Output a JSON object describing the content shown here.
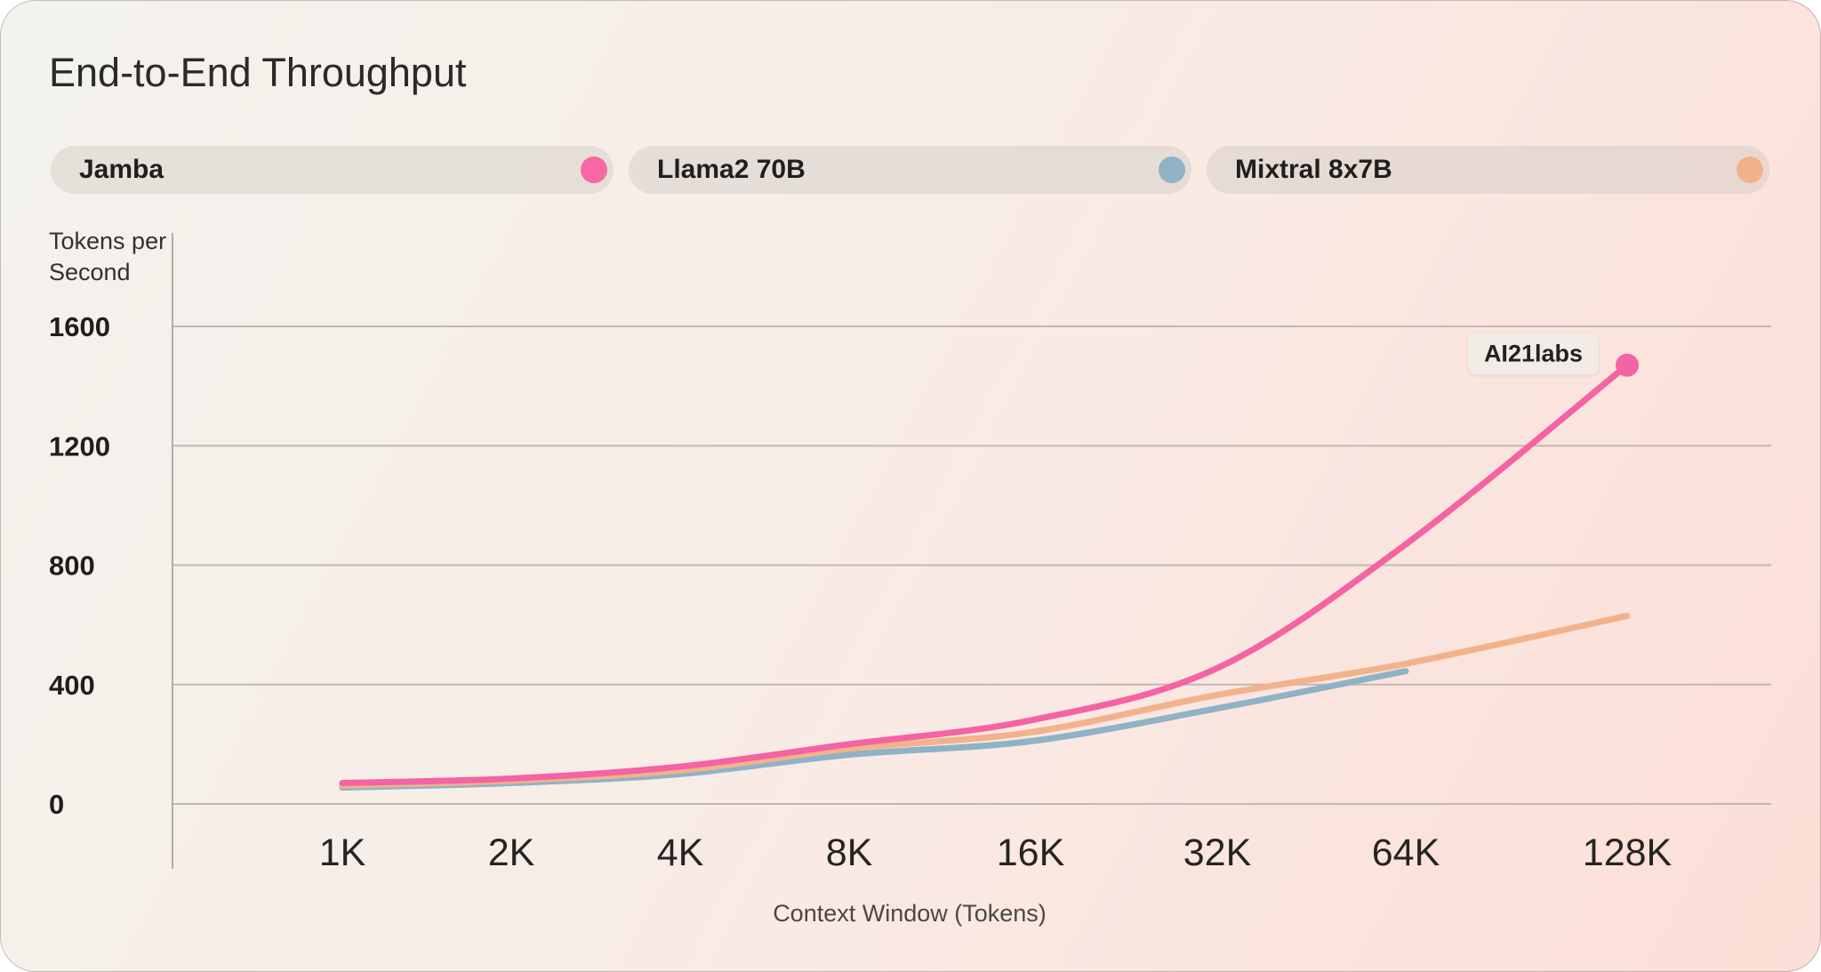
{
  "legend": {
    "items": [
      {
        "label": "Jamba",
        "color": "#f768a4"
      },
      {
        "label": "Llama2 70B",
        "color": "#8fb2c7"
      },
      {
        "label": "Mixtral 8x7B",
        "color": "#f3b189"
      }
    ]
  },
  "chart_data": {
    "type": "line",
    "title": "End-to-End Throughput",
    "xlabel": "Context Window (Tokens)",
    "ylabel": "Tokens per\nSecond",
    "x_scale": "log2",
    "categories": [
      "1K",
      "2K",
      "4K",
      "8K",
      "16K",
      "32K",
      "64K",
      "128K"
    ],
    "yticks": [
      0,
      400,
      800,
      1200,
      1600
    ],
    "ylim": [
      0,
      1600
    ],
    "grid": "horizontal-only",
    "legend_position": "top",
    "series": [
      {
        "name": "Llama2 70B",
        "color": "#8fb2c7",
        "values": [
          55,
          70,
          100,
          165,
          210,
          320,
          445,
          null
        ]
      },
      {
        "name": "Mixtral 8x7B",
        "color": "#f2b28b",
        "values": [
          62,
          78,
          112,
          185,
          240,
          365,
          470,
          630
        ]
      },
      {
        "name": "Jamba",
        "color": "#f463a2",
        "values": [
          70,
          85,
          125,
          200,
          280,
          455,
          870,
          1470
        ],
        "endpoint_dot": true,
        "endpoint_label": "AI21labs"
      }
    ]
  }
}
